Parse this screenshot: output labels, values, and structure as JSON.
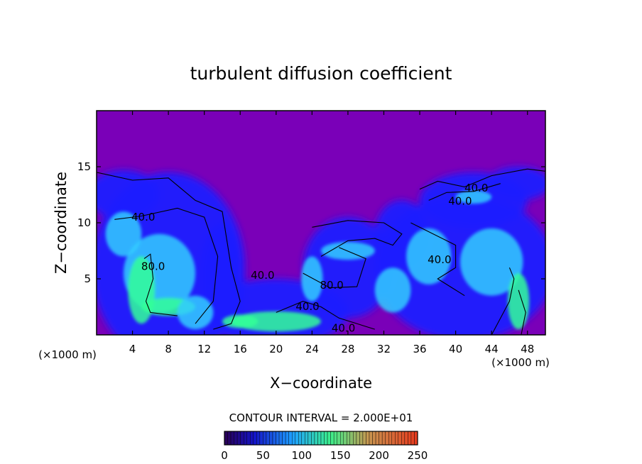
{
  "chart_data": {
    "type": "heatmap",
    "title": "turbulent diffusion coefficient",
    "xlabel": "X−coordinate",
    "ylabel": "Z−coordinate",
    "x_unit_left": "(×1000 m)",
    "x_unit_right": "(×1000 m)",
    "x_ticks": [
      4,
      8,
      12,
      16,
      20,
      24,
      28,
      32,
      36,
      40,
      44,
      48
    ],
    "y_ticks": [
      5,
      10,
      15
    ],
    "xlim": [
      0,
      50
    ],
    "ylim": [
      0,
      20
    ],
    "contour_interval_text": "CONTOUR INTERVAL = 2.000E+01",
    "contour_labels": [
      {
        "text": "40.0",
        "x": 5.2,
        "y": 10.2
      },
      {
        "text": "80.0",
        "x": 6.3,
        "y": 5.8
      },
      {
        "text": "40.0",
        "x": 18.5,
        "y": 5.0
      },
      {
        "text": "40.0",
        "x": 23.5,
        "y": 2.2
      },
      {
        "text": "40.0",
        "x": 27.5,
        "y": 0.3
      },
      {
        "text": "80.0",
        "x": 26.2,
        "y": 4.1
      },
      {
        "text": "40.0",
        "x": 42.3,
        "y": 12.8
      },
      {
        "text": "40.0",
        "x": 40.5,
        "y": 11.6
      },
      {
        "text": "40.0",
        "x": 38.2,
        "y": 6.4
      }
    ],
    "colorbar": {
      "min": 0,
      "max": 250,
      "ticks": [
        0,
        50,
        100,
        150,
        200,
        250
      ]
    },
    "colors": {
      "background_field": "#7a00b8",
      "low": "#1a1aff",
      "mid": "#33ccff",
      "high": "#33ff99"
    }
  }
}
